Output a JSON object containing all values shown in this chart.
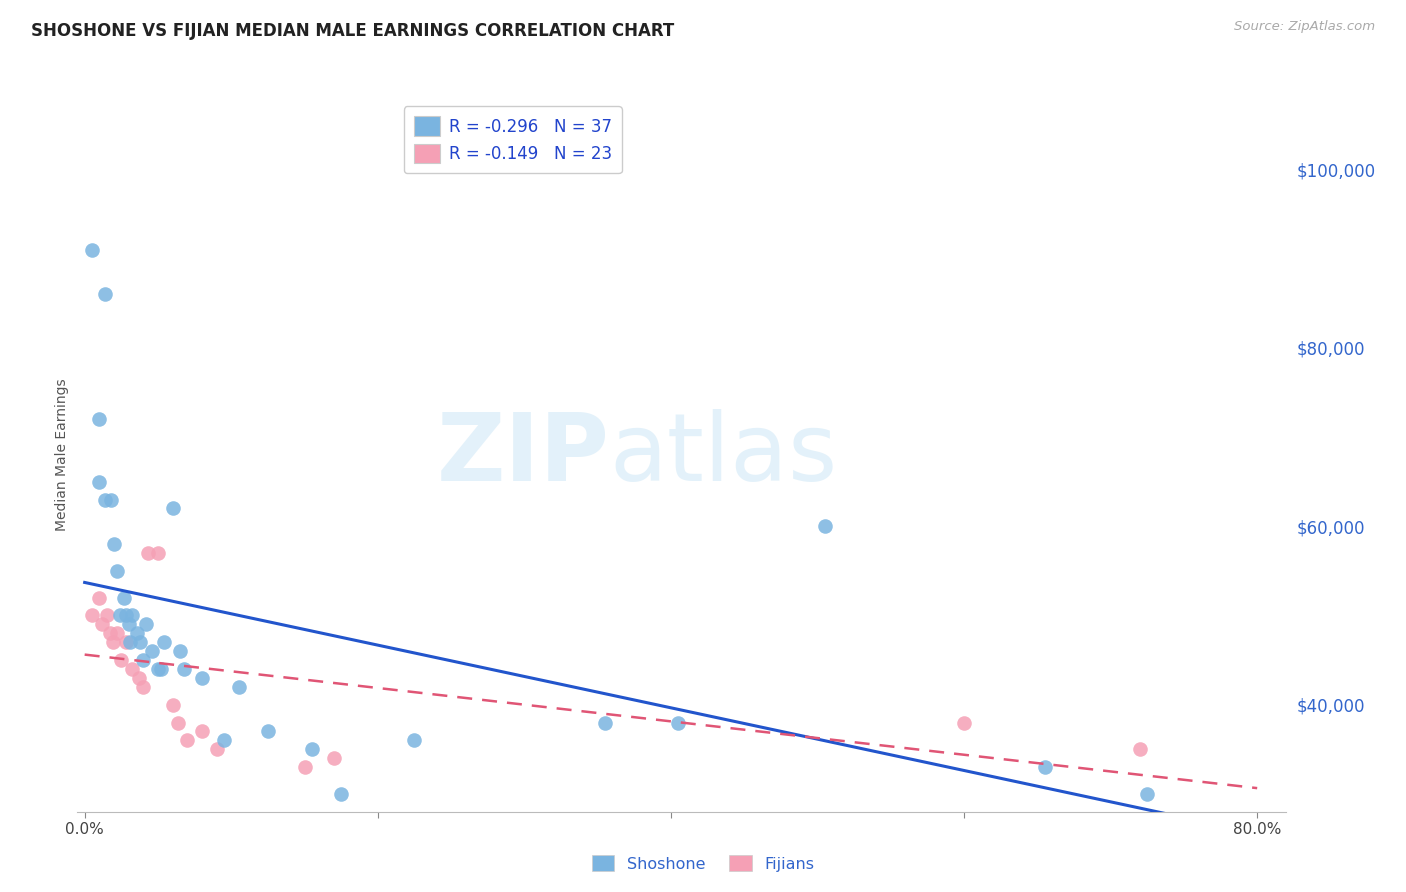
{
  "title": "SHOSHONE VS FIJIAN MEDIAN MALE EARNINGS CORRELATION CHART",
  "source": "Source: ZipAtlas.com",
  "ylabel": "Median Male Earnings",
  "xlim": [
    -0.005,
    0.82
  ],
  "ylim": [
    28000,
    108000
  ],
  "ytick_vals": [
    40000,
    60000,
    80000,
    100000
  ],
  "ytick_labels": [
    "$40,000",
    "$60,000",
    "$80,000",
    "$100,000"
  ],
  "xtick_vals": [
    0.0,
    0.2,
    0.4,
    0.6,
    0.8
  ],
  "xtick_labels": [
    "0.0%",
    "",
    "",
    "",
    "80.0%"
  ],
  "bg_color": "#ffffff",
  "grid_color": "#cccccc",
  "shoshone_color": "#7ab4e0",
  "fijian_color": "#f5a0b5",
  "shoshone_line_color": "#2255cc",
  "fijian_line_color": "#e05575",
  "legend_r_shoshone": "R = -0.296",
  "legend_n_shoshone": "N = 37",
  "legend_r_fijian": "R = -0.149",
  "legend_n_fijian": "N = 23",
  "watermark_zip": "ZIP",
  "watermark_atlas": "atlas",
  "shoshone_x": [
    0.005,
    0.014,
    0.01,
    0.01,
    0.014,
    0.018,
    0.02,
    0.022,
    0.024,
    0.027,
    0.028,
    0.03,
    0.031,
    0.032,
    0.036,
    0.038,
    0.04,
    0.042,
    0.046,
    0.05,
    0.052,
    0.054,
    0.06,
    0.065,
    0.068,
    0.08,
    0.095,
    0.105,
    0.125,
    0.155,
    0.175,
    0.225,
    0.355,
    0.405,
    0.505,
    0.655,
    0.725
  ],
  "shoshone_y": [
    91000,
    86000,
    72000,
    65000,
    63000,
    63000,
    58000,
    55000,
    50000,
    52000,
    50000,
    49000,
    47000,
    50000,
    48000,
    47000,
    45000,
    49000,
    46000,
    44000,
    44000,
    47000,
    62000,
    46000,
    44000,
    43000,
    36000,
    42000,
    37000,
    35000,
    30000,
    36000,
    38000,
    38000,
    60000,
    33000,
    30000
  ],
  "fijian_x": [
    0.005,
    0.01,
    0.012,
    0.015,
    0.017,
    0.019,
    0.022,
    0.025,
    0.028,
    0.032,
    0.037,
    0.04,
    0.043,
    0.05,
    0.06,
    0.064,
    0.07,
    0.08,
    0.09,
    0.15,
    0.17,
    0.6,
    0.72
  ],
  "fijian_y": [
    50000,
    52000,
    49000,
    50000,
    48000,
    47000,
    48000,
    45000,
    47000,
    44000,
    43000,
    42000,
    57000,
    57000,
    40000,
    38000,
    36000,
    37000,
    35000,
    33000,
    34000,
    38000,
    35000
  ],
  "trendline_x": [
    0.0,
    0.8
  ]
}
